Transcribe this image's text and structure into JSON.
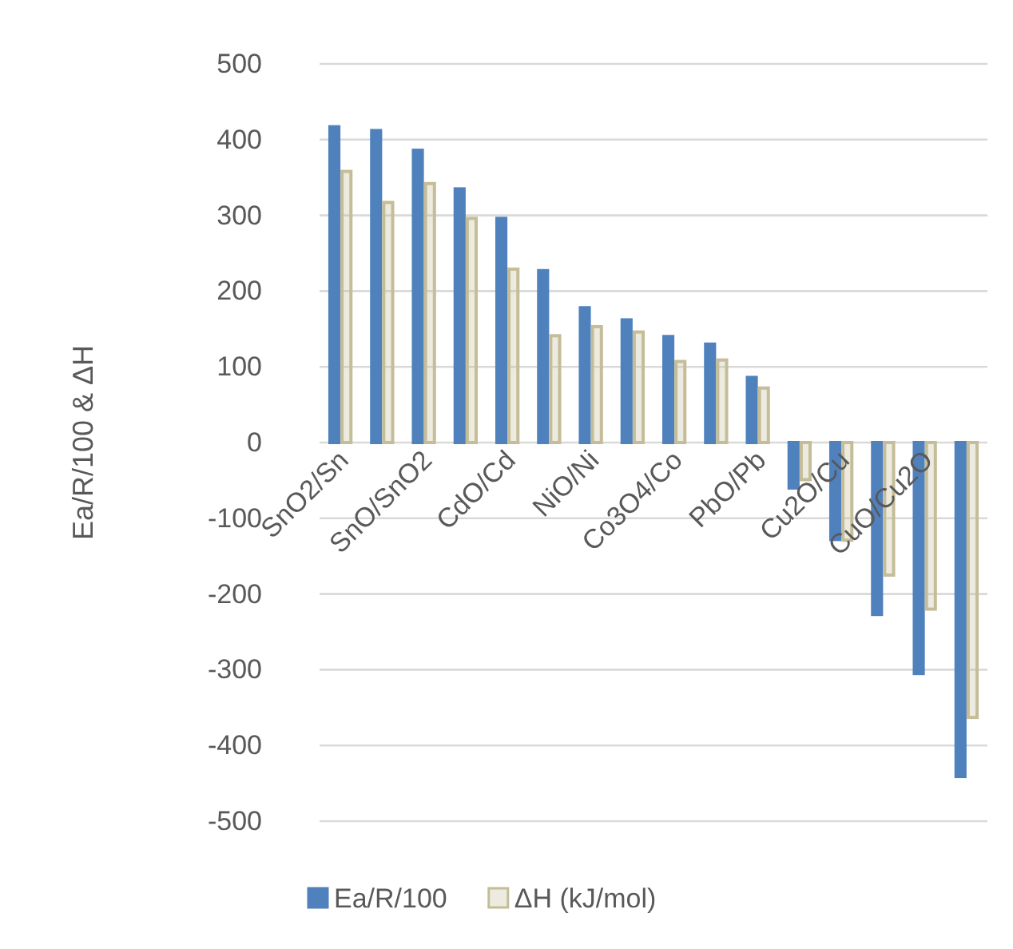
{
  "chart_data": {
    "type": "bar",
    "ylabel": "Ea/R/100 & ΔH",
    "categories": [
      "SnO2/Sn",
      null,
      "SnO/SnO2",
      null,
      "CdO/Cd",
      null,
      "NiO/Ni",
      null,
      "Co3O4/Co",
      null,
      "PbO/Pb",
      null,
      "Cu2O/Cu",
      null,
      "CuO/Cu2O",
      null
    ],
    "series": [
      {
        "name": "Ea/R/100",
        "color": "#4f81bd",
        "values": [
          417,
          412,
          386,
          335,
          296,
          227,
          178,
          162,
          140,
          130,
          86,
          -60,
          -128,
          -227,
          -305,
          -441
        ]
      },
      {
        "name": "ΔH (kJ/mol)",
        "color": "#c4bd97",
        "values": [
          358,
          317,
          342,
          296,
          229,
          141,
          153,
          146,
          107,
          109,
          72,
          -49,
          -129,
          -175,
          -220,
          -363
        ]
      }
    ],
    "ylim": [
      -500,
      500
    ],
    "yticks": [
      -500,
      -400,
      -300,
      -200,
      -100,
      0,
      100,
      200,
      300,
      400,
      500
    ],
    "grid": "y",
    "legend": "bottom"
  }
}
